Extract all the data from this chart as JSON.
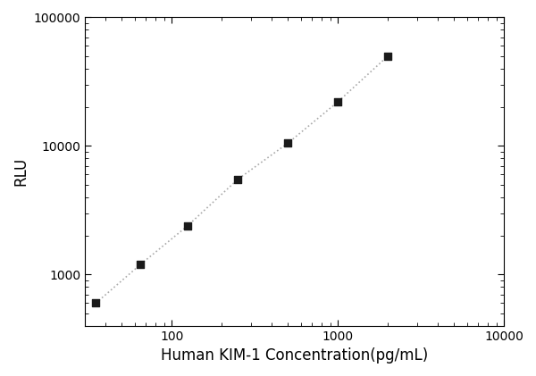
{
  "x": [
    35,
    65,
    125,
    250,
    500,
    1000,
    2000
  ],
  "y": [
    600,
    1200,
    2400,
    5500,
    10500,
    22000,
    50000
  ],
  "xlabel": "Human KIM-1 Concentration(pg/mL)",
  "ylabel": "RLU",
  "xlim": [
    30,
    10000
  ],
  "ylim": [
    400,
    100000
  ],
  "xticks": [
    100,
    1000,
    10000
  ],
  "yticks": [
    1000,
    10000,
    100000
  ],
  "marker": "s",
  "marker_color": "#1a1a1a",
  "marker_size": 6,
  "line_color": "#aaaaaa",
  "line_style": "dotted",
  "line_width": 1.2,
  "background_color": "#ffffff",
  "xlabel_fontsize": 12,
  "ylabel_fontsize": 12,
  "tick_fontsize": 10
}
